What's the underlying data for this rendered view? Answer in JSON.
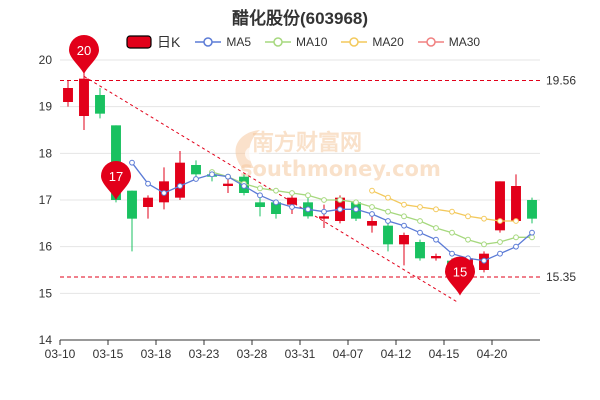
{
  "chart_data": {
    "type": "candlestick",
    "title": "醋化股份(603968)",
    "legend": [
      {
        "name": "日K",
        "kind": "candle"
      },
      {
        "name": "MA5",
        "kind": "line",
        "color": "#5b7bd6"
      },
      {
        "name": "MA10",
        "kind": "line",
        "color": "#a6d87e"
      },
      {
        "name": "MA20",
        "kind": "line",
        "color": "#f3c95c"
      },
      {
        "name": "MA30",
        "kind": "line",
        "color": "#f08080"
      }
    ],
    "colors": {
      "up": "#e2001a",
      "down": "#19c160",
      "ma5": "#5b7bd6",
      "ma10": "#a6d87e",
      "ma20": "#f3c95c",
      "ma30": "#f08080",
      "trend": "#e2001a",
      "grid": "#e4e4e4"
    },
    "ylim": [
      14,
      20
    ],
    "y_ticks": [
      14,
      15,
      16,
      17,
      18,
      19,
      20
    ],
    "x_ticks": [
      {
        "i": 0,
        "label": "03-10"
      },
      {
        "i": 3,
        "label": "03-15"
      },
      {
        "i": 6,
        "label": "03-18"
      },
      {
        "i": 9,
        "label": "03-23"
      },
      {
        "i": 12,
        "label": "03-28"
      },
      {
        "i": 15,
        "label": "03-31"
      },
      {
        "i": 18,
        "label": "04-07"
      },
      {
        "i": 21,
        "label": "04-12"
      },
      {
        "i": 24,
        "label": "04-15"
      },
      {
        "i": 27,
        "label": "04-20"
      }
    ],
    "candles": [
      {
        "o": 19.1,
        "c": 19.4,
        "h": 19.55,
        "l": 19.0
      },
      {
        "o": 18.8,
        "c": 19.6,
        "h": 20.1,
        "l": 18.5
      },
      {
        "o": 19.25,
        "c": 18.85,
        "h": 19.4,
        "l": 18.75
      },
      {
        "o": 18.6,
        "c": 17.0,
        "h": 18.6,
        "l": 16.95
      },
      {
        "o": 17.2,
        "c": 16.6,
        "h": 17.2,
        "l": 15.9
      },
      {
        "o": 16.85,
        "c": 17.05,
        "h": 17.1,
        "l": 16.6
      },
      {
        "o": 16.95,
        "c": 17.4,
        "h": 17.7,
        "l": 16.8
      },
      {
        "o": 17.05,
        "c": 17.8,
        "h": 18.05,
        "l": 17.0
      },
      {
        "o": 17.75,
        "c": 17.55,
        "h": 17.85,
        "l": 17.45
      },
      {
        "o": 17.55,
        "c": 17.5,
        "h": 17.6,
        "l": 17.4
      },
      {
        "o": 17.3,
        "c": 17.35,
        "h": 17.5,
        "l": 17.15
      },
      {
        "o": 17.5,
        "c": 17.15,
        "h": 17.55,
        "l": 17.1
      },
      {
        "o": 16.95,
        "c": 16.85,
        "h": 17.1,
        "l": 16.65
      },
      {
        "o": 16.95,
        "c": 16.7,
        "h": 17.0,
        "l": 16.6
      },
      {
        "o": 16.9,
        "c": 17.05,
        "h": 17.1,
        "l": 16.7
      },
      {
        "o": 16.95,
        "c": 16.65,
        "h": 17.05,
        "l": 16.6
      },
      {
        "o": 16.6,
        "c": 16.65,
        "h": 16.9,
        "l": 16.4
      },
      {
        "o": 16.55,
        "c": 17.05,
        "h": 17.1,
        "l": 16.5
      },
      {
        "o": 16.95,
        "c": 16.6,
        "h": 17.0,
        "l": 16.55
      },
      {
        "o": 16.45,
        "c": 16.55,
        "h": 16.75,
        "l": 16.3
      },
      {
        "o": 16.45,
        "c": 16.05,
        "h": 16.5,
        "l": 15.9
      },
      {
        "o": 16.05,
        "c": 16.25,
        "h": 16.3,
        "l": 15.6
      },
      {
        "o": 16.1,
        "c": 15.75,
        "h": 16.15,
        "l": 15.7
      },
      {
        "o": 15.75,
        "c": 15.8,
        "h": 15.85,
        "l": 15.7
      },
      {
        "o": 15.7,
        "c": 15.35,
        "h": 15.75,
        "l": 15.3
      },
      {
        "o": 15.55,
        "c": 15.75,
        "h": 15.8,
        "l": 15.45
      },
      {
        "o": 15.5,
        "c": 15.85,
        "h": 15.9,
        "l": 15.45
      },
      {
        "o": 16.35,
        "c": 17.4,
        "h": 17.4,
        "l": 16.3
      },
      {
        "o": 16.55,
        "c": 17.3,
        "h": 17.55,
        "l": 16.5
      },
      {
        "o": 17.0,
        "c": 16.6,
        "h": 17.05,
        "l": 16.5
      }
    ],
    "ma5": [
      null,
      null,
      null,
      null,
      17.8,
      17.35,
      17.15,
      17.3,
      17.45,
      17.55,
      17.5,
      17.3,
      17.1,
      16.95,
      16.85,
      16.8,
      16.75,
      16.8,
      16.8,
      16.7,
      16.55,
      16.45,
      16.3,
      16.15,
      15.85,
      15.75,
      15.7,
      15.85,
      16.0,
      16.3
    ],
    "ma10": [
      null,
      null,
      null,
      null,
      null,
      null,
      null,
      null,
      null,
      17.6,
      17.5,
      17.35,
      17.25,
      17.2,
      17.15,
      17.1,
      17.0,
      17.0,
      16.95,
      16.85,
      16.75,
      16.65,
      16.55,
      16.4,
      16.3,
      16.15,
      16.05,
      16.1,
      16.2,
      16.2
    ],
    "ma20": [
      null,
      null,
      null,
      null,
      null,
      null,
      null,
      null,
      null,
      null,
      null,
      null,
      null,
      null,
      null,
      null,
      null,
      null,
      null,
      17.2,
      17.05,
      16.9,
      16.85,
      16.8,
      16.75,
      16.65,
      16.6,
      16.55,
      16.55,
      null
    ],
    "ma30": [],
    "ref_lines": [
      {
        "value": 19.56,
        "label": "19.56"
      },
      {
        "value": 15.35,
        "label": "15.35"
      }
    ],
    "trendline": {
      "from": {
        "i": 1,
        "y": 19.65
      },
      "to": {
        "i": 24.4,
        "y": 14.8
      }
    },
    "markers": [
      {
        "label": "20",
        "i": 1,
        "y": 19.7,
        "color": "#e2001a"
      },
      {
        "label": "17",
        "i": 3,
        "y": 17.0,
        "color": "#e2001a"
      },
      {
        "label": "15",
        "i": 24.5,
        "y": 14.95,
        "color": "#e2001a"
      }
    ],
    "watermark": {
      "cn": "南方财富网",
      "en": "southmoney.com"
    }
  }
}
